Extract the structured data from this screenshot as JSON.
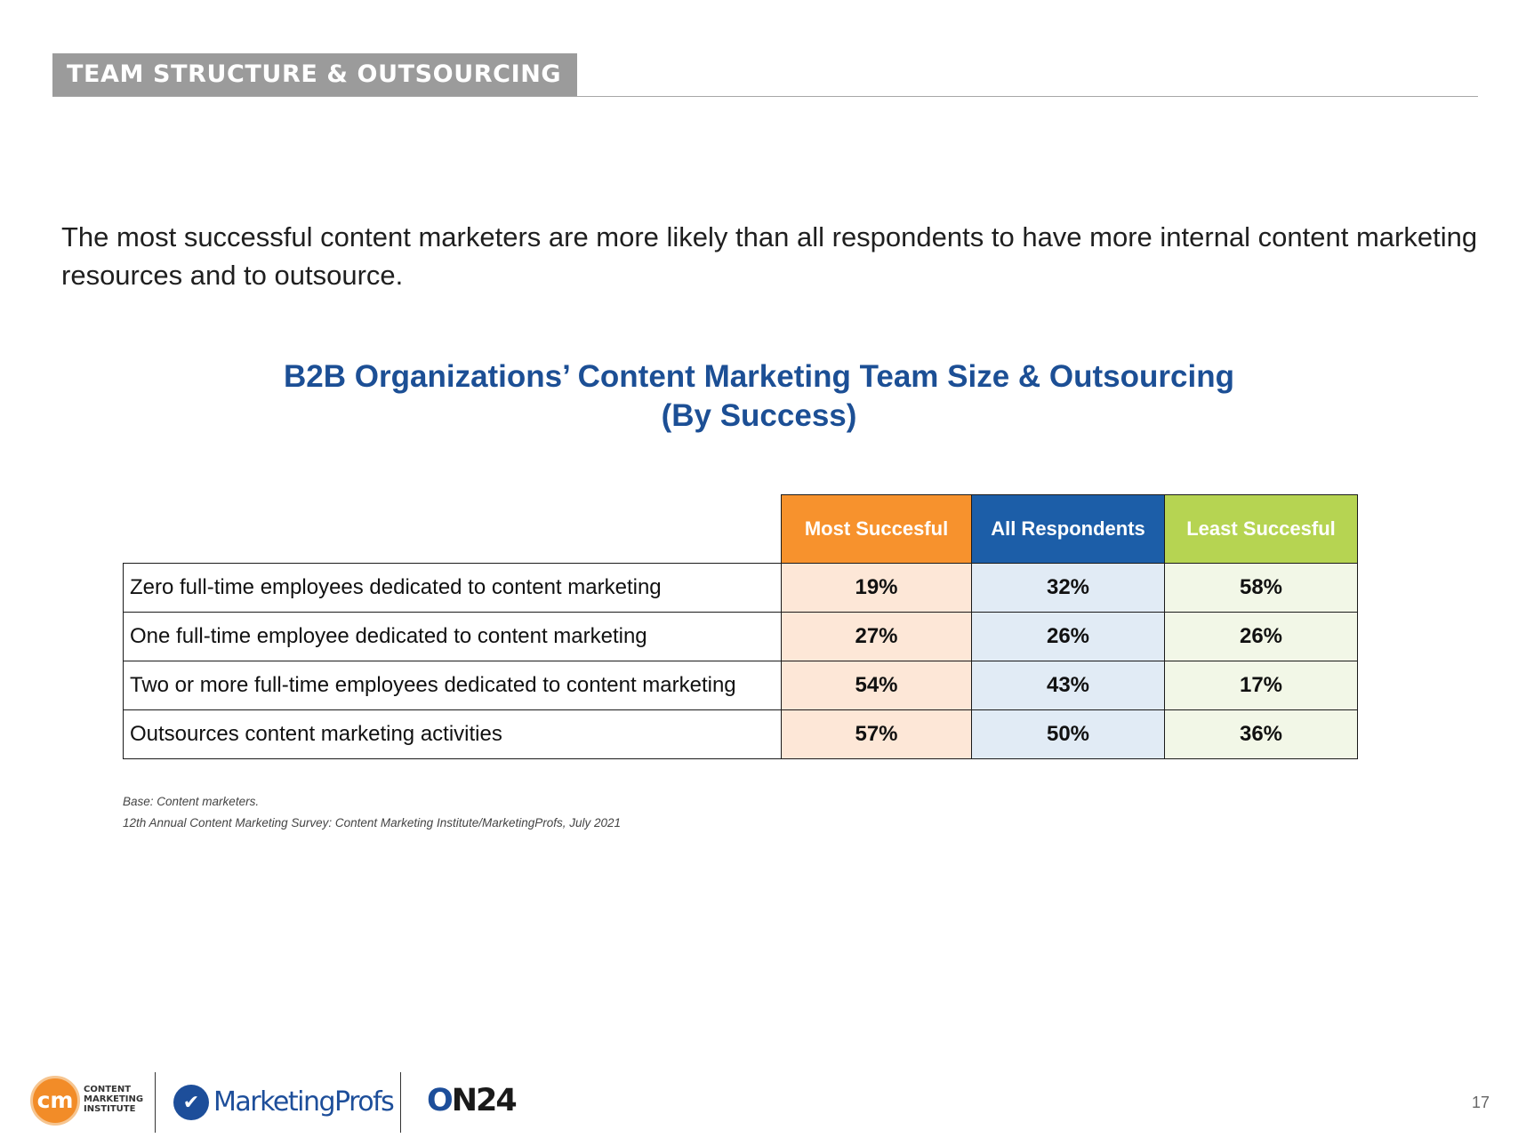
{
  "header": {
    "section_title": "TEAM STRUCTURE & OUTSOURCING"
  },
  "intro": {
    "text": "The most successful content marketers are more likely than all respondents to have more internal content marketing resources and to outsource."
  },
  "chart_data": {
    "type": "table",
    "title": "B2B Organizations’ Content Marketing Team Size & Outsourcing",
    "subtitle": "(By Success)",
    "columns": [
      {
        "name": "Most Succesful",
        "header_color": "#f7922d",
        "cell_color": "#fde7d7"
      },
      {
        "name": "All Respondents",
        "header_color": "#1c5ea8",
        "cell_color": "#e1ebf5"
      },
      {
        "name": "Least  Succesful",
        "header_color": "#b6d452",
        "cell_color": "#f2f7e7"
      }
    ],
    "rows": [
      {
        "label": "Zero full-time employees dedicated to content marketing",
        "values": [
          "19%",
          "32%",
          "58%"
        ]
      },
      {
        "label": "One full-time employee dedicated to content marketing",
        "values": [
          "27%",
          "26%",
          "26%"
        ]
      },
      {
        "label": "Two or more full-time employees dedicated to content marketing",
        "values": [
          "54%",
          "43%",
          "17%"
        ]
      },
      {
        "label": "Outsources content marketing activities",
        "values": [
          "57%",
          "50%",
          "36%"
        ]
      }
    ]
  },
  "notes": {
    "base": "Base: Content marketers.",
    "source": "12th Annual Content Marketing Survey: Content Marketing Institute/MarketingProfs, July 2021"
  },
  "footer": {
    "cmi_mark": "cm",
    "cmi_line1": "CONTENT",
    "cmi_line2": "MARKETING",
    "cmi_line3": "INSTITUTE",
    "mp_name": "MarketingProfs",
    "on24_o": "O",
    "on24_n24": "N24",
    "page_number": "17"
  }
}
